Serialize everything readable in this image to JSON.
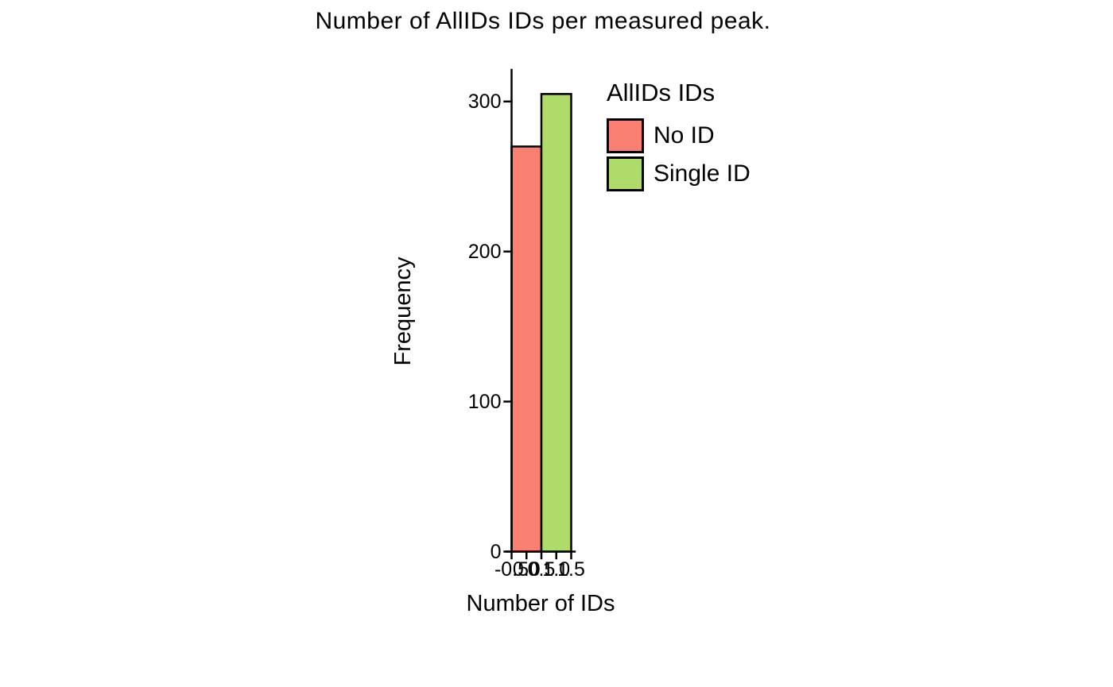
{
  "page": {
    "background": "#ffffff"
  },
  "chart_data": {
    "type": "bar",
    "title": "Number of AllIDs IDs per measured peak.",
    "xlabel": "Number of IDs",
    "ylabel": "Frequency",
    "categories": [
      "No ID",
      "Single ID"
    ],
    "series": [
      {
        "name": "No ID",
        "value": 270,
        "color": "#FA8072",
        "bin": [
          -0.5,
          0.5
        ]
      },
      {
        "name": "Single ID",
        "value": 305,
        "color": "#AEDB69",
        "bin": [
          0.5,
          1.5
        ]
      }
    ],
    "x_ticks": [
      -0.5,
      0.0,
      0.5,
      1.0,
      1.5
    ],
    "x_tick_labels": [
      "-0.5",
      "0.0",
      "0.5",
      "1.0",
      "1.5"
    ],
    "y_ticks": [
      0,
      100,
      200,
      300
    ],
    "y_tick_labels": [
      "0",
      "100",
      "200",
      "300"
    ],
    "xlim": [
      -0.5,
      1.5
    ],
    "ylim": [
      0,
      320
    ],
    "grid": false,
    "bar_edge_color": "#000000",
    "axis_color": "#000000",
    "legend": {
      "title": "AllIDs IDs",
      "position": "top-right",
      "entries": [
        {
          "label": "No ID",
          "color": "#FA8072"
        },
        {
          "label": "Single ID",
          "color": "#AEDB69"
        }
      ]
    }
  }
}
